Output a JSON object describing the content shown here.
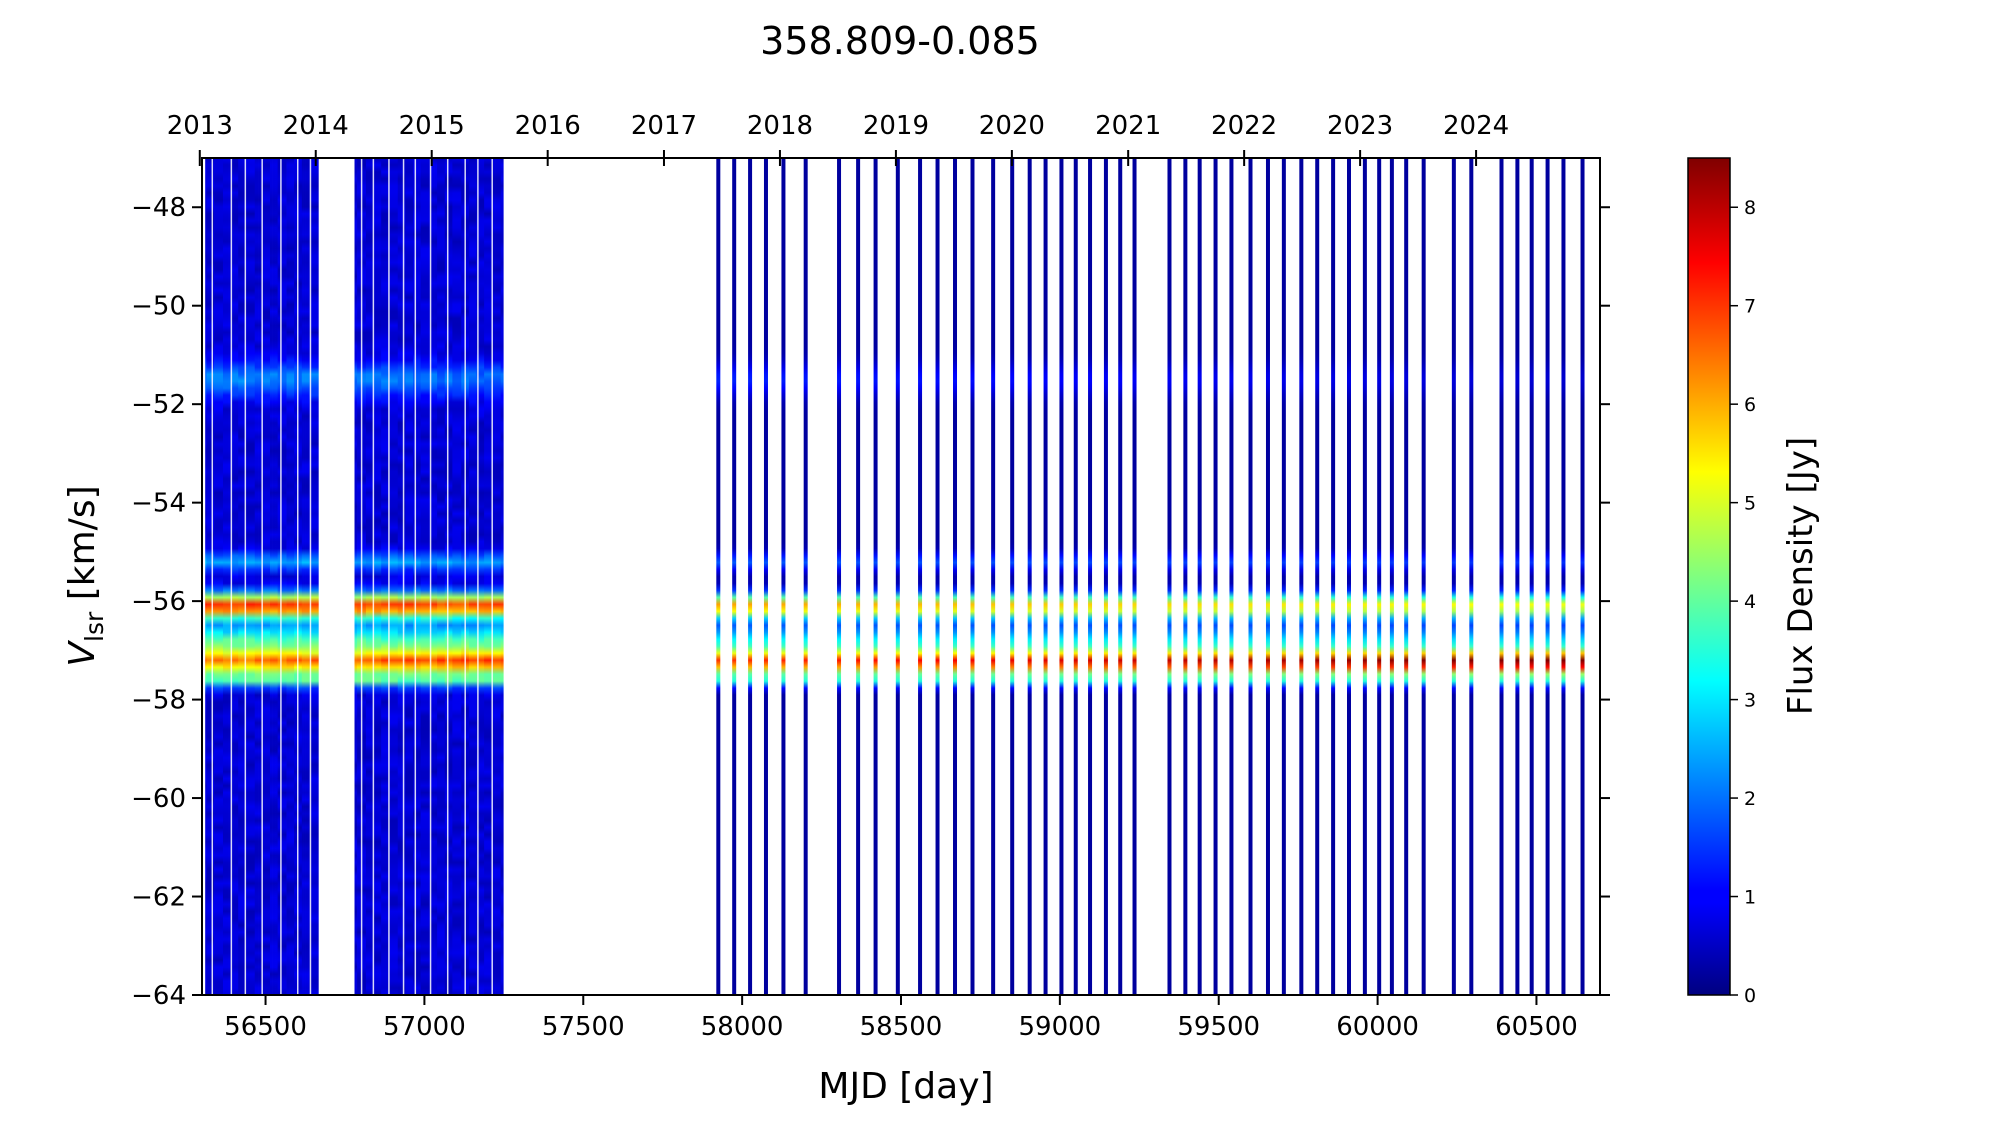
{
  "chart_data": {
    "type": "heatmap",
    "title": "358.809-0.085",
    "xlabel": "MJD [day]",
    "ylabel_main": "V",
    "ylabel_sub": "lsr",
    "ylabel_rest": " [km/s]",
    "colorbar_label": "Flux Density [Jy]",
    "colormap": "jet",
    "xlim": [
      56300,
      60700
    ],
    "ylim": [
      -64,
      -47
    ],
    "clim": [
      0,
      8.5
    ],
    "x_ticks": [
      56500,
      57000,
      57500,
      58000,
      58500,
      59000,
      59500,
      60000,
      60500
    ],
    "x_tick_labels": [
      "56500",
      "57000",
      "57500",
      "58000",
      "58500",
      "59000",
      "59500",
      "60000",
      "60500"
    ],
    "y_ticks": [
      -48,
      -50,
      -52,
      -54,
      -56,
      -58,
      -60,
      -62,
      -64
    ],
    "y_tick_labels": [
      "−48",
      "−50",
      "−52",
      "−54",
      "−56",
      "−58",
      "−60",
      "−62",
      "−64"
    ],
    "top_axis": {
      "years": [
        "2013",
        "2014",
        "2015",
        "2016",
        "2017",
        "2018",
        "2019",
        "2020",
        "2021",
        "2022",
        "2023",
        "2024"
      ],
      "mjd": [
        56293,
        56658,
        57023,
        57388,
        57754,
        58119,
        58484,
        58849,
        59215,
        59580,
        59945,
        60310
      ]
    },
    "colorbar_ticks": [
      0,
      1,
      2,
      3,
      4,
      5,
      6,
      7,
      8
    ],
    "colorbar_tick_labels": [
      "0",
      "1",
      "2",
      "3",
      "4",
      "5",
      "6",
      "7",
      "8"
    ],
    "dense_coverage": [
      [
        56310,
        56665
      ],
      [
        56780,
        57245
      ]
    ],
    "observation_epochs": [
      57925,
      57975,
      58025,
      58075,
      58130,
      58200,
      58305,
      58365,
      58420,
      58490,
      58560,
      58615,
      58670,
      58725,
      58790,
      58850,
      58905,
      58955,
      59005,
      59050,
      59095,
      59145,
      59190,
      59235,
      59345,
      59395,
      59440,
      59490,
      59540,
      59600,
      59655,
      59705,
      59760,
      59810,
      59860,
      59910,
      59960,
      60005,
      60045,
      60090,
      60145,
      60240,
      60295,
      60390,
      60440,
      60485,
      60535,
      60585,
      60645
    ],
    "spectral_features": [
      {
        "velocity": -56.1,
        "width": 0.25,
        "peak_early": 6.5,
        "peak_late": 5.0
      },
      {
        "velocity": -56.85,
        "width": 0.35,
        "peak_early": 3.2,
        "peak_late": 2.6
      },
      {
        "velocity": -57.25,
        "width": 0.22,
        "peak_early": 4.8,
        "peak_late": 8.0
      },
      {
        "velocity": -57.6,
        "width": 0.15,
        "peak_early": 3.0,
        "peak_late": 2.8
      },
      {
        "velocity": -55.2,
        "width": 0.18,
        "peak_early": 1.8,
        "peak_late": 1.2
      },
      {
        "velocity": -51.5,
        "width": 0.35,
        "peak_early": 1.5,
        "peak_late": 0.4
      }
    ]
  }
}
